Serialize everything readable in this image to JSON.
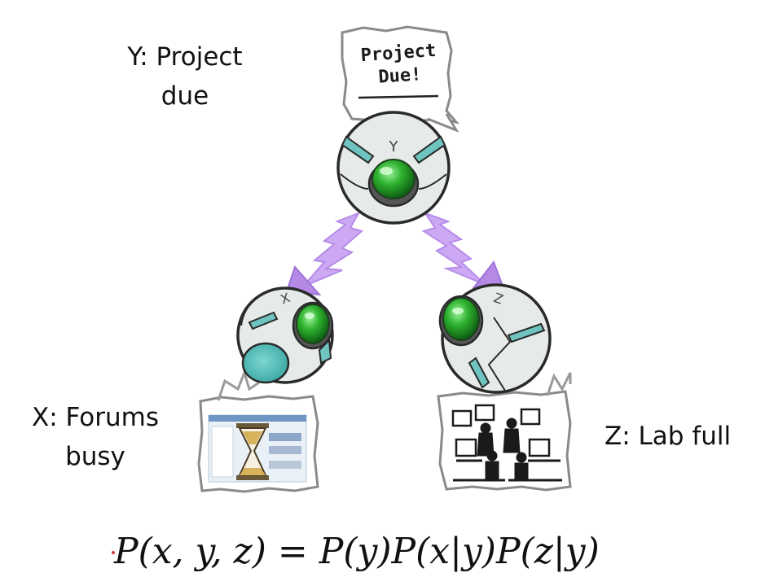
{
  "nodes": {
    "y": {
      "label_line1": "Y: Project",
      "label_line2": "due",
      "letter": "Y"
    },
    "x": {
      "label_line1": "X: Forums",
      "label_line2": "busy",
      "letter": "X"
    },
    "z": {
      "label_line1": "Z: Lab full",
      "letter": "Z"
    }
  },
  "bubble_y": {
    "line1": "Project",
    "line2": "Due!"
  },
  "formula": "P(x, y, z) = P(y)P(x|y)P(z|y)",
  "colors": {
    "eye_green": "#2e9c2e",
    "eye_shell": "#e6ebe9",
    "teal": "#6fc4c0",
    "lightning": "#c9a7f0"
  }
}
